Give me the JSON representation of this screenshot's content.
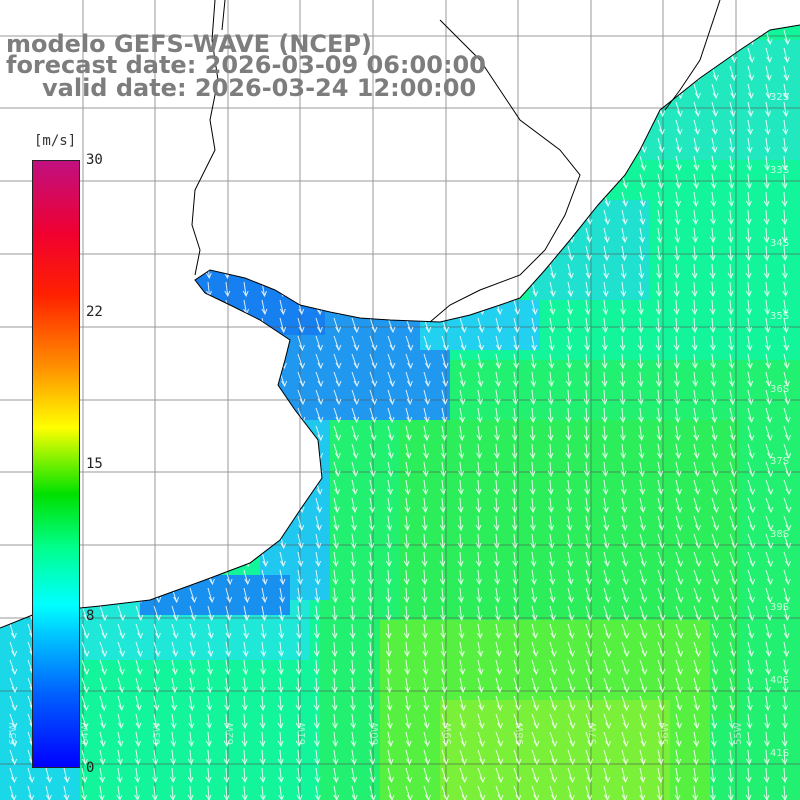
{
  "title": {
    "model": "modelo GEFS-WAVE (NCEP)",
    "forecast": "forecast date: 2026-03-09 06:00:00",
    "valid": "valid date: 2026-03-24 12:00:00"
  },
  "colorbar": {
    "unit": "[m/s]",
    "ticks": [
      {
        "value": 30,
        "label": "30"
      },
      {
        "value": 22,
        "label": "22"
      },
      {
        "value": 15,
        "label": "15"
      },
      {
        "value": 8,
        "label": "8"
      },
      {
        "value": 0,
        "label": "0"
      }
    ],
    "range": [
      0,
      30
    ]
  },
  "map": {
    "lat_labels": [
      "32S",
      "33S",
      "34S",
      "35S",
      "36S",
      "37S",
      "38S",
      "39S",
      "40S",
      "41S"
    ],
    "lon_labels": [
      "65W",
      "64W",
      "63W",
      "62W",
      "61W",
      "60W",
      "59W",
      "58W",
      "57W",
      "56W",
      "55W"
    ],
    "colors": {
      "land": "#ffffff",
      "coast": "#000000",
      "grid": "#555555",
      "arrow": "#ffffff"
    },
    "arrow_direction": "southward"
  }
}
